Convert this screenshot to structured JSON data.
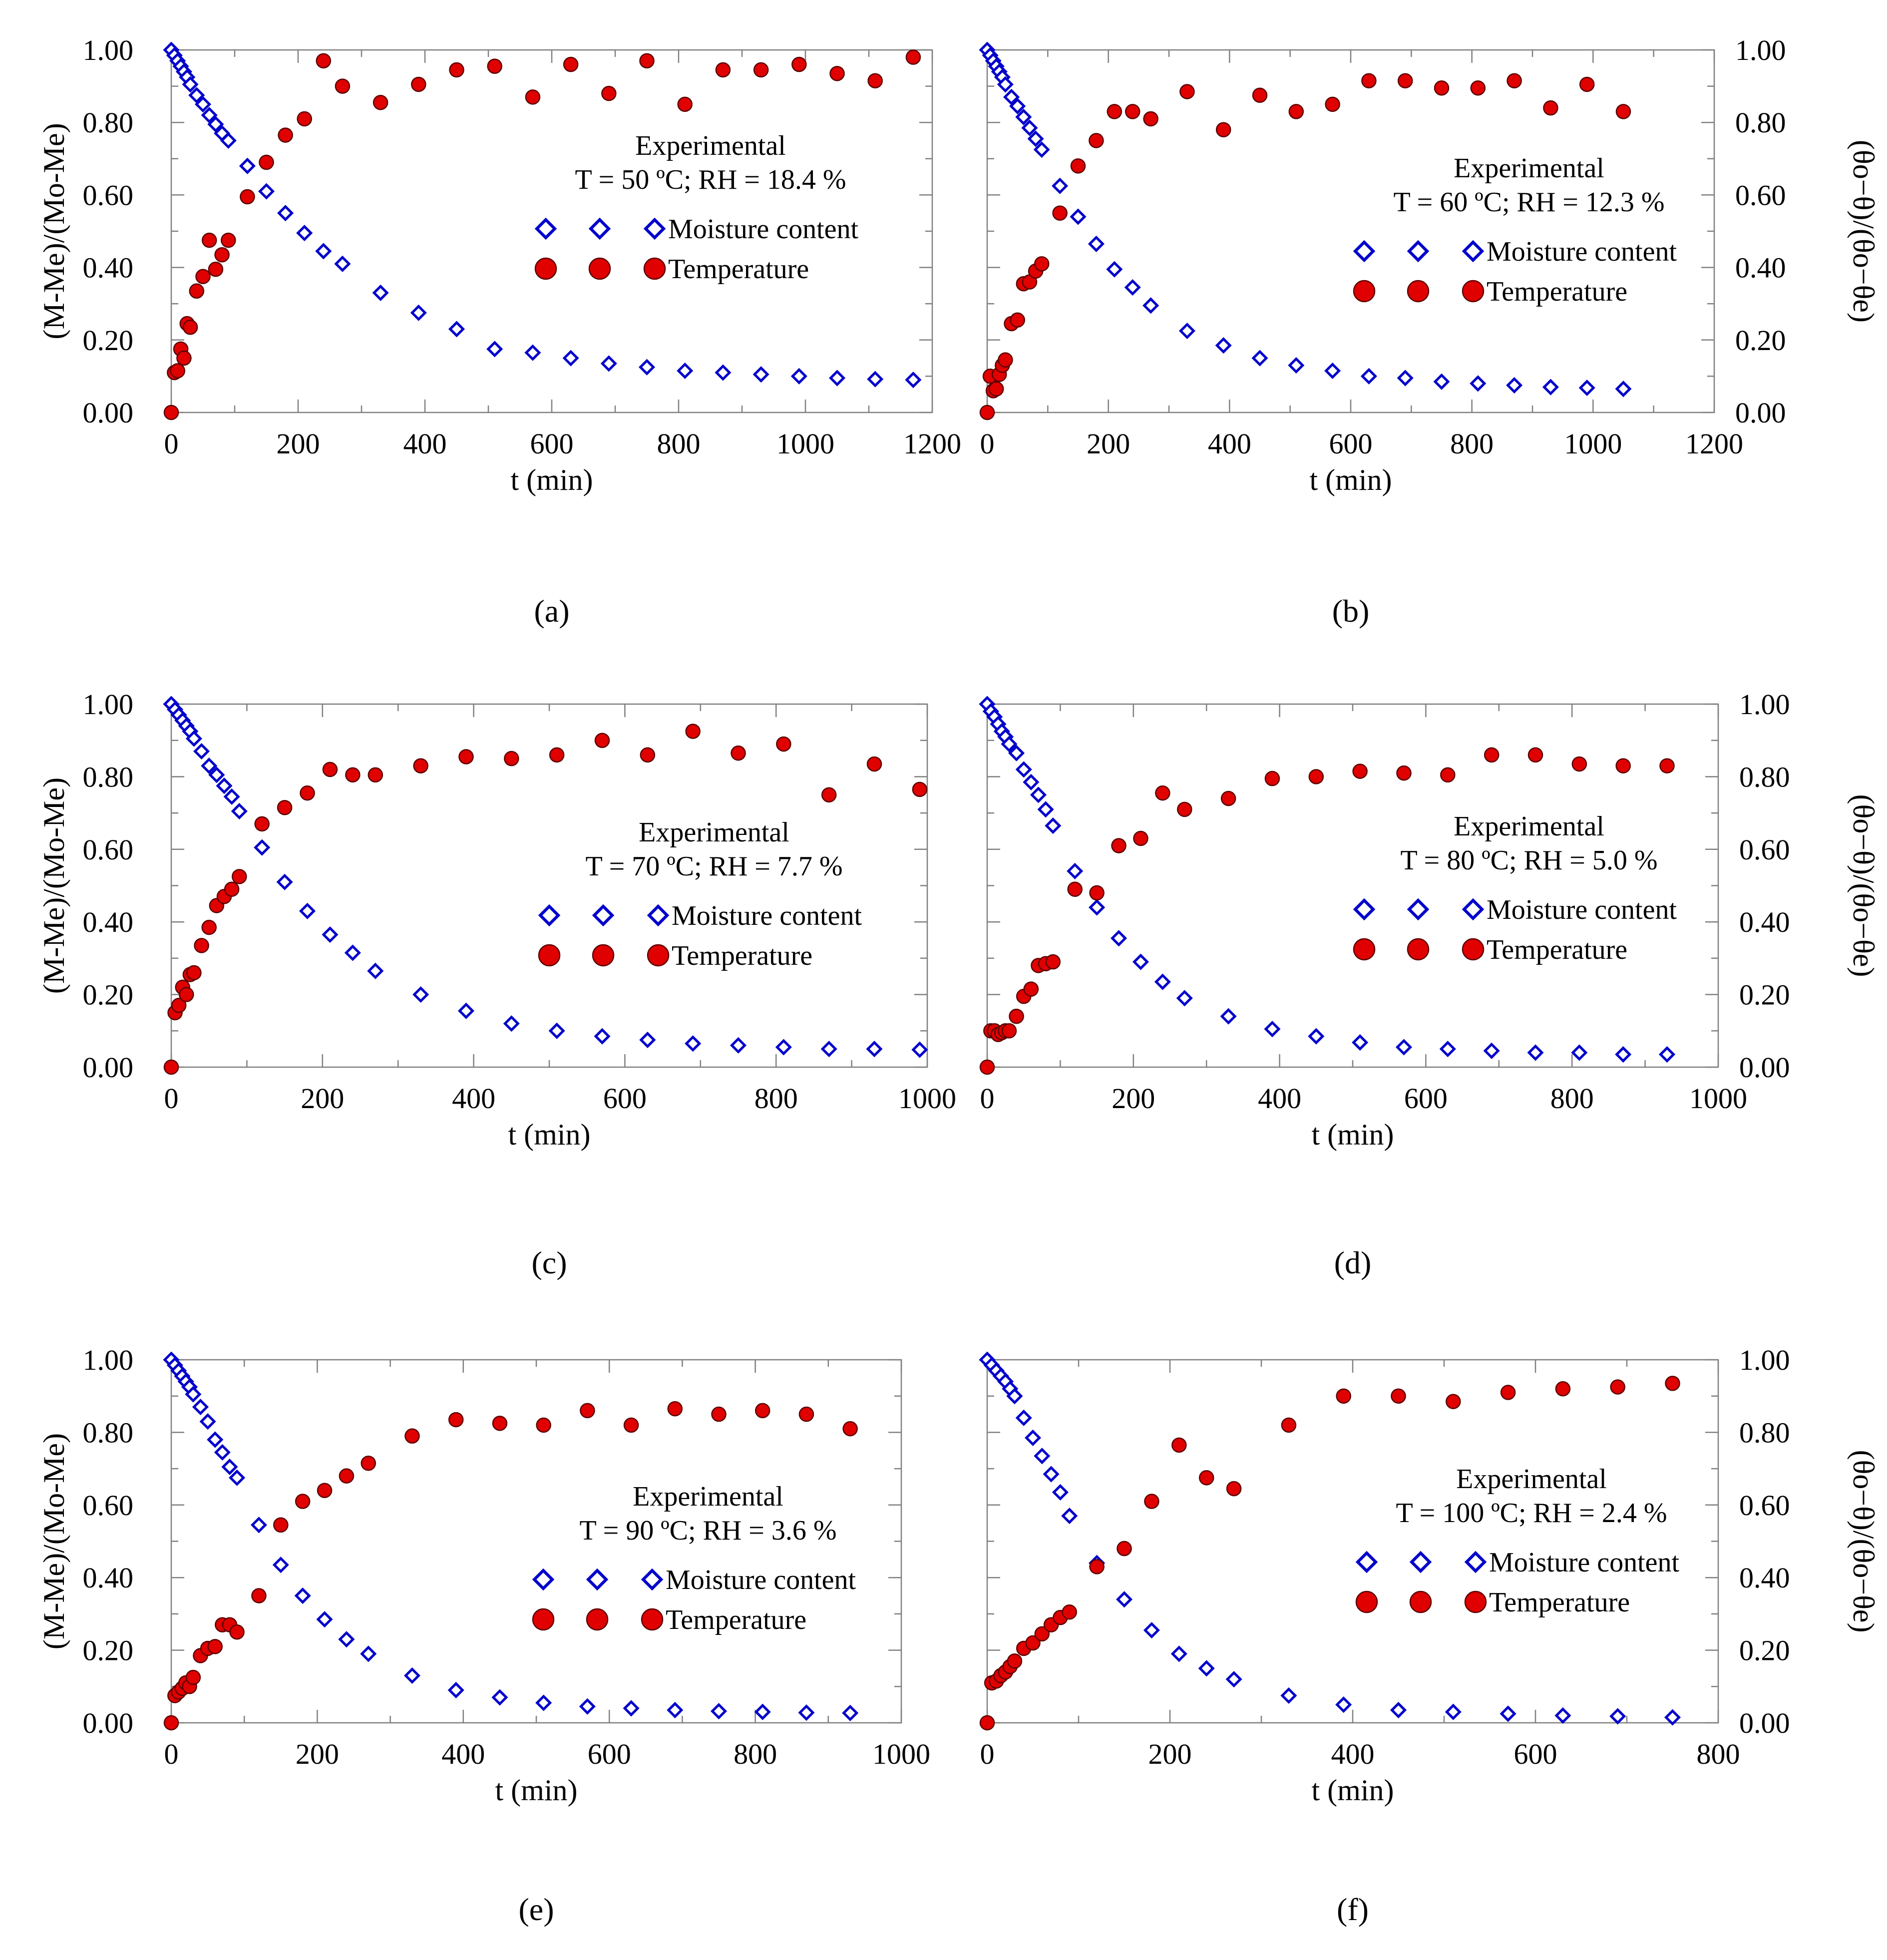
{
  "colors": {
    "moisture": "#0000cc",
    "temperature": "#e00000",
    "axis": "#808080"
  },
  "legend": {
    "heading": "Experimental",
    "moisture_label": "Moisture content",
    "temperature_label": "Temperature"
  },
  "chart_data": [
    {
      "panel": "a",
      "type": "scatter",
      "caption": "(a)",
      "condition": "T = 50 ºC; RH = 18.4 %",
      "xlabel": "t (min)",
      "ylabel_left": "(M-Me)/(Mo-Me)",
      "ylabel_right": "",
      "xlim": [
        0,
        1200
      ],
      "xticks": [
        0,
        200,
        400,
        600,
        800,
        1000,
        1200
      ],
      "ylim": [
        0,
        1
      ],
      "yticks": [
        0,
        0.2,
        0.4,
        0.6,
        0.8,
        1
      ],
      "ytick_labels": [
        "0.00",
        "0.20",
        "0.40",
        "0.60",
        "0.80",
        "1.00"
      ],
      "series": [
        {
          "name": "Moisture content",
          "x": [
            0,
            5,
            10,
            15,
            20,
            25,
            30,
            40,
            50,
            60,
            70,
            80,
            90,
            120,
            150,
            180,
            210,
            240,
            270,
            330,
            390,
            450,
            510,
            570,
            630,
            690,
            750,
            810,
            870,
            930,
            990,
            1050,
            1110,
            1170
          ],
          "y": [
            1.0,
            0.985,
            0.97,
            0.955,
            0.94,
            0.925,
            0.905,
            0.875,
            0.85,
            0.82,
            0.795,
            0.77,
            0.75,
            0.68,
            0.61,
            0.55,
            0.495,
            0.445,
            0.41,
            0.33,
            0.275,
            0.23,
            0.175,
            0.165,
            0.15,
            0.135,
            0.125,
            0.115,
            0.11,
            0.105,
            0.1,
            0.095,
            0.092,
            0.09
          ]
        },
        {
          "name": "Temperature",
          "x": [
            0,
            5,
            10,
            15,
            20,
            25,
            30,
            40,
            50,
            60,
            70,
            80,
            90,
            120,
            150,
            180,
            210,
            240,
            270,
            330,
            390,
            450,
            510,
            570,
            630,
            690,
            750,
            810,
            870,
            930,
            990,
            1050,
            1110,
            1170
          ],
          "y": [
            0.0,
            0.11,
            0.115,
            0.175,
            0.15,
            0.245,
            0.235,
            0.335,
            0.375,
            0.475,
            0.395,
            0.435,
            0.475,
            0.595,
            0.69,
            0.765,
            0.81,
            0.97,
            0.9,
            0.855,
            0.905,
            0.945,
            0.955,
            0.87,
            0.96,
            0.88,
            0.97,
            0.85,
            0.945,
            0.945,
            0.96,
            0.935,
            0.915,
            0.98
          ]
        }
      ]
    },
    {
      "panel": "b",
      "type": "scatter",
      "caption": "(b)",
      "condition": "T = 60 ºC; RH = 12.3 %",
      "xlabel": "t (min)",
      "ylabel_left": "",
      "ylabel_right": "(θo−θ)/(θo−θe)",
      "xlim": [
        0,
        1200
      ],
      "xticks": [
        0,
        200,
        400,
        600,
        800,
        1000,
        1200
      ],
      "ylim": [
        0,
        1
      ],
      "yticks": [
        0,
        0.2,
        0.4,
        0.6,
        0.8,
        1
      ],
      "ytick_labels": [
        "0.00",
        "0.20",
        "0.40",
        "0.60",
        "0.80",
        "1.00"
      ],
      "series": [
        {
          "name": "Moisture content",
          "x": [
            0,
            5,
            10,
            15,
            20,
            25,
            30,
            40,
            50,
            60,
            70,
            80,
            90,
            120,
            150,
            180,
            210,
            240,
            270,
            330,
            390,
            450,
            510,
            570,
            630,
            690,
            750,
            810,
            870,
            930,
            990,
            1050
          ],
          "y": [
            1.0,
            0.985,
            0.97,
            0.955,
            0.94,
            0.925,
            0.905,
            0.87,
            0.845,
            0.815,
            0.785,
            0.755,
            0.725,
            0.625,
            0.54,
            0.465,
            0.395,
            0.345,
            0.295,
            0.225,
            0.185,
            0.15,
            0.13,
            0.115,
            0.1,
            0.095,
            0.085,
            0.08,
            0.075,
            0.07,
            0.068,
            0.065
          ]
        },
        {
          "name": "Temperature",
          "x": [
            0,
            5,
            10,
            15,
            20,
            25,
            30,
            40,
            50,
            60,
            70,
            80,
            90,
            120,
            150,
            180,
            210,
            240,
            270,
            330,
            390,
            450,
            510,
            570,
            630,
            690,
            750,
            810,
            870,
            930,
            990,
            1050
          ],
          "y": [
            0.0,
            0.1,
            0.06,
            0.065,
            0.105,
            0.13,
            0.145,
            0.245,
            0.255,
            0.355,
            0.36,
            0.39,
            0.41,
            0.55,
            0.68,
            0.75,
            0.83,
            0.83,
            0.81,
            0.885,
            0.78,
            0.875,
            0.83,
            0.85,
            0.915,
            0.915,
            0.895,
            0.895,
            0.915,
            0.84,
            0.905,
            0.83
          ]
        }
      ]
    },
    {
      "panel": "c",
      "type": "scatter",
      "caption": "(c)",
      "condition": "T = 70 ºC; RH = 7.7 %",
      "xlabel": "t (min)",
      "ylabel_left": "(M-Me)/(Mo-Me)",
      "ylabel_right": "",
      "xlim": [
        0,
        1000
      ],
      "xticks": [
        0,
        200,
        400,
        600,
        800,
        1000
      ],
      "ylim": [
        0,
        1
      ],
      "yticks": [
        0,
        0.2,
        0.4,
        0.6,
        0.8,
        1
      ],
      "ytick_labels": [
        "0.00",
        "0.20",
        "0.40",
        "0.60",
        "0.80",
        "1.00"
      ],
      "series": [
        {
          "name": "Moisture content",
          "x": [
            0,
            5,
            10,
            15,
            20,
            25,
            30,
            40,
            50,
            60,
            70,
            80,
            90,
            120,
            150,
            180,
            210,
            240,
            270,
            330,
            390,
            450,
            510,
            570,
            630,
            690,
            750,
            810,
            870,
            930,
            990
          ],
          "y": [
            1.0,
            0.985,
            0.97,
            0.955,
            0.94,
            0.925,
            0.905,
            0.87,
            0.83,
            0.805,
            0.775,
            0.745,
            0.705,
            0.605,
            0.51,
            0.43,
            0.365,
            0.315,
            0.265,
            0.2,
            0.155,
            0.12,
            0.1,
            0.085,
            0.075,
            0.065,
            0.06,
            0.055,
            0.05,
            0.05,
            0.048
          ]
        },
        {
          "name": "Temperature",
          "x": [
            0,
            5,
            10,
            15,
            20,
            25,
            30,
            40,
            50,
            60,
            70,
            80,
            90,
            120,
            150,
            180,
            210,
            240,
            270,
            330,
            390,
            450,
            510,
            570,
            630,
            690,
            750,
            810,
            870,
            930,
            990
          ],
          "y": [
            0.0,
            0.15,
            0.17,
            0.22,
            0.2,
            0.255,
            0.26,
            0.335,
            0.385,
            0.445,
            0.47,
            0.49,
            0.525,
            0.67,
            0.715,
            0.755,
            0.82,
            0.805,
            0.805,
            0.83,
            0.855,
            0.85,
            0.86,
            0.9,
            0.86,
            0.925,
            0.865,
            0.89,
            0.75,
            0.835,
            0.765
          ]
        }
      ]
    },
    {
      "panel": "d",
      "type": "scatter",
      "caption": "(d)",
      "condition": "T = 80 ºC; RH = 5.0 %",
      "xlabel": "t (min)",
      "ylabel_left": "",
      "ylabel_right": "(θo−θ)/(θo−θe)",
      "xlim": [
        0,
        1000
      ],
      "xticks": [
        0,
        200,
        400,
        600,
        800,
        1000
      ],
      "ylim": [
        0,
        1
      ],
      "yticks": [
        0,
        0.2,
        0.4,
        0.6,
        0.8,
        1
      ],
      "ytick_labels": [
        "0.00",
        "0.20",
        "0.40",
        "0.60",
        "0.80",
        "1.00"
      ],
      "series": [
        {
          "name": "Moisture content",
          "x": [
            0,
            5,
            10,
            15,
            20,
            25,
            30,
            40,
            50,
            60,
            70,
            80,
            90,
            120,
            150,
            180,
            210,
            240,
            270,
            330,
            390,
            450,
            510,
            570,
            630,
            690,
            750,
            810,
            870,
            930
          ],
          "y": [
            1.0,
            0.98,
            0.965,
            0.945,
            0.925,
            0.91,
            0.89,
            0.865,
            0.82,
            0.785,
            0.75,
            0.71,
            0.665,
            0.54,
            0.44,
            0.355,
            0.29,
            0.235,
            0.19,
            0.14,
            0.105,
            0.085,
            0.068,
            0.055,
            0.05,
            0.045,
            0.04,
            0.04,
            0.035,
            0.035
          ]
        },
        {
          "name": "Temperature",
          "x": [
            0,
            5,
            10,
            15,
            20,
            25,
            30,
            40,
            50,
            60,
            70,
            80,
            90,
            120,
            150,
            180,
            210,
            240,
            270,
            330,
            390,
            450,
            510,
            570,
            630,
            690,
            750,
            810,
            870,
            930
          ],
          "y": [
            0.0,
            0.1,
            0.1,
            0.09,
            0.095,
            0.1,
            0.1,
            0.14,
            0.195,
            0.215,
            0.28,
            0.285,
            0.29,
            0.49,
            0.48,
            0.61,
            0.63,
            0.755,
            0.71,
            0.74,
            0.795,
            0.8,
            0.815,
            0.81,
            0.805,
            0.86,
            0.86,
            0.835,
            0.83,
            0.83
          ]
        }
      ]
    },
    {
      "panel": "e",
      "type": "scatter",
      "caption": "(e)",
      "condition": "T = 90 ºC; RH = 3.6 %",
      "xlabel": "t (min)",
      "ylabel_left": "(M-Me)/(Mo-Me)",
      "ylabel_right": "",
      "xlim": [
        0,
        1000
      ],
      "xticks": [
        0,
        200,
        400,
        600,
        800,
        1000
      ],
      "ylim": [
        0,
        1
      ],
      "yticks": [
        0,
        0.2,
        0.4,
        0.6,
        0.8,
        1
      ],
      "ytick_labels": [
        "0.00",
        "0.20",
        "0.40",
        "0.60",
        "0.80",
        "1.00"
      ],
      "series": [
        {
          "name": "Moisture content",
          "x": [
            0,
            5,
            10,
            15,
            20,
            25,
            30,
            40,
            50,
            60,
            70,
            80,
            90,
            120,
            150,
            180,
            210,
            240,
            270,
            330,
            390,
            450,
            510,
            570,
            630,
            690,
            750,
            810,
            870,
            930
          ],
          "y": [
            1.0,
            0.985,
            0.97,
            0.955,
            0.94,
            0.925,
            0.905,
            0.87,
            0.83,
            0.78,
            0.745,
            0.705,
            0.675,
            0.545,
            0.435,
            0.35,
            0.285,
            0.23,
            0.19,
            0.13,
            0.09,
            0.07,
            0.055,
            0.045,
            0.04,
            0.035,
            0.032,
            0.03,
            0.028,
            0.027
          ]
        },
        {
          "name": "Temperature",
          "x": [
            0,
            5,
            10,
            15,
            20,
            25,
            30,
            40,
            50,
            60,
            70,
            80,
            90,
            120,
            150,
            180,
            210,
            240,
            270,
            330,
            390,
            450,
            510,
            570,
            630,
            690,
            750,
            810,
            870,
            930
          ],
          "y": [
            0.0,
            0.075,
            0.085,
            0.095,
            0.11,
            0.1,
            0.125,
            0.185,
            0.205,
            0.21,
            0.27,
            0.27,
            0.25,
            0.35,
            0.545,
            0.61,
            0.64,
            0.68,
            0.715,
            0.79,
            0.835,
            0.825,
            0.82,
            0.86,
            0.82,
            0.865,
            0.85,
            0.86,
            0.85,
            0.81
          ]
        }
      ]
    },
    {
      "panel": "f",
      "type": "scatter",
      "caption": "(f)",
      "condition": "T = 100 ºC; RH = 2.4 %",
      "xlabel": "t (min)",
      "ylabel_left": "",
      "ylabel_right": "(θo−θ)/(θo−θe)",
      "xlim": [
        0,
        800
      ],
      "xticks": [
        0,
        200,
        400,
        600,
        800
      ],
      "ylim": [
        0,
        1
      ],
      "yticks": [
        0,
        0.2,
        0.4,
        0.6,
        0.8,
        1
      ],
      "ytick_labels": [
        "0.00",
        "0.20",
        "0.40",
        "0.60",
        "0.80",
        "1.00"
      ],
      "series": [
        {
          "name": "Moisture content",
          "x": [
            0,
            5,
            10,
            15,
            20,
            25,
            30,
            40,
            50,
            60,
            70,
            80,
            90,
            120,
            150,
            180,
            210,
            240,
            270,
            330,
            390,
            450,
            510,
            570,
            630,
            690,
            750
          ],
          "y": [
            1.0,
            0.985,
            0.97,
            0.955,
            0.94,
            0.92,
            0.9,
            0.84,
            0.785,
            0.735,
            0.685,
            0.635,
            0.57,
            0.44,
            0.34,
            0.255,
            0.19,
            0.15,
            0.12,
            0.075,
            0.05,
            0.035,
            0.03,
            0.025,
            0.02,
            0.018,
            0.015
          ]
        },
        {
          "name": "Temperature",
          "x": [
            0,
            5,
            10,
            15,
            20,
            25,
            30,
            40,
            50,
            60,
            70,
            80,
            90,
            120,
            150,
            180,
            210,
            240,
            270,
            330,
            390,
            450,
            510,
            570,
            630,
            690,
            750
          ],
          "y": [
            0.0,
            0.11,
            0.115,
            0.13,
            0.14,
            0.155,
            0.17,
            0.205,
            0.22,
            0.245,
            0.27,
            0.29,
            0.305,
            0.43,
            0.48,
            0.61,
            0.765,
            0.675,
            0.645,
            0.82,
            0.9,
            0.9,
            0.885,
            0.91,
            0.92,
            0.925,
            0.935
          ]
        }
      ]
    }
  ]
}
